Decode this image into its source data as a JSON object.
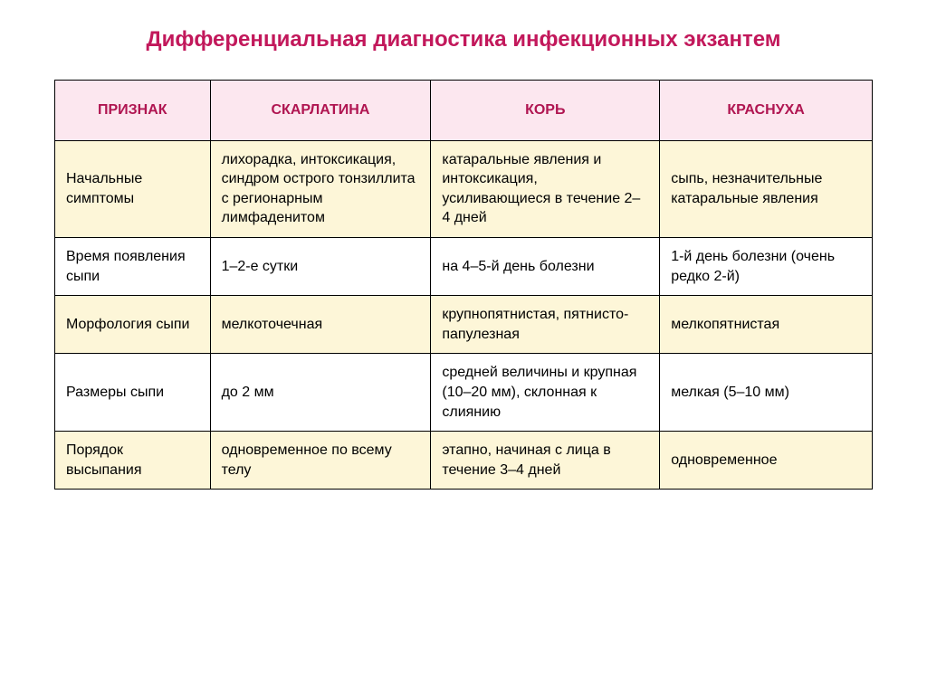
{
  "title": "Дифференциальная диагностика инфекционных экзантем",
  "title_color": "#c2185b",
  "table": {
    "type": "table",
    "border_color": "#000000",
    "header_bg": "#fce7ef",
    "header_text_color": "#b01551",
    "row_alt_bg_shaded": "#fdf6d8",
    "row_alt_bg_plain": "#ffffff",
    "cell_text_color": "#000000",
    "column_widths_pct": [
      19,
      27,
      28,
      26
    ],
    "fontsize_title": 24,
    "fontsize_header": 16,
    "fontsize_cell": 16,
    "columns": [
      "ПРИЗНАК",
      "СКАРЛАТИНА",
      "КОРЬ",
      "КРАСНУХА"
    ],
    "rows": [
      {
        "shaded": true,
        "cells": [
          "Начальные симптомы",
          "лихорадка, интоксикация, синдром острого тонзиллита с регионарным лимфаденитом",
          "катаральные явления и интоксикация, усиливающиеся в течение 2–4 дней",
          "сыпь, незначительные катаральные явления"
        ]
      },
      {
        "shaded": false,
        "cells": [
          "Время появления сыпи",
          "1–2-е сутки",
          "на 4–5-й день болезни",
          "1-й день болезни (очень редко 2-й)"
        ]
      },
      {
        "shaded": true,
        "cells": [
          "Морфология сыпи",
          "мелкоточечная",
          "крупнопятнистая, пятнисто-папулезная",
          "мелкопятнистая"
        ]
      },
      {
        "shaded": false,
        "cells": [
          "Размеры сыпи",
          "до 2 мм",
          "средней величины и крупная (10–20 мм), склонная к слиянию",
          "мелкая (5–10 мм)"
        ]
      },
      {
        "shaded": true,
        "cells": [
          "Порядок высыпания",
          "одновременное по всему телу",
          "этапно, начиная с лица в течение 3–4 дней",
          "одновременное"
        ]
      }
    ]
  }
}
